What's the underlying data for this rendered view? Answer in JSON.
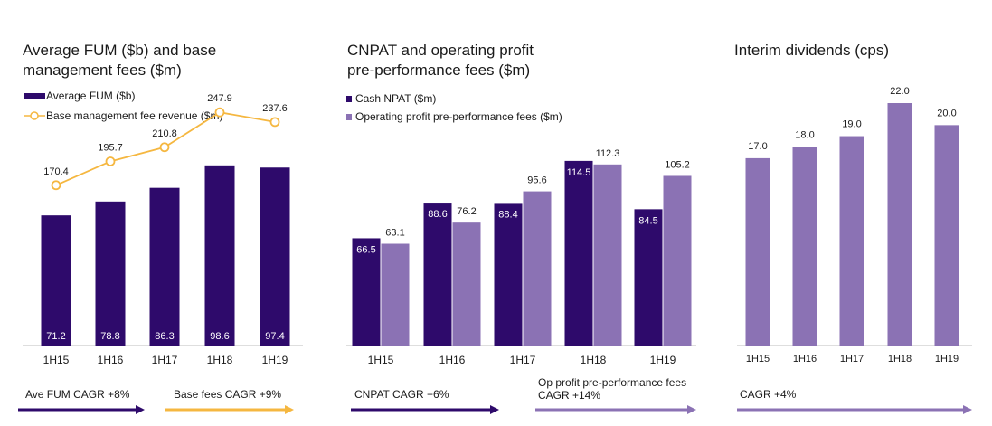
{
  "colors": {
    "dark_purple": "#2e0a6b",
    "light_purple": "#8b72b4",
    "orange": "#f5b740",
    "axis": "#bdbdbd",
    "text": "#1a1a1a"
  },
  "chart_data": [
    {
      "type": "bar",
      "title_lines": [
        "Average FUM ($b) and base",
        "management fees ($m)"
      ],
      "categories": [
        "1H15",
        "1H16",
        "1H17",
        "1H18",
        "1H19"
      ],
      "series": [
        {
          "name": "Average FUM ($b)",
          "kind": "bar",
          "values": [
            71.2,
            78.8,
            86.3,
            98.6,
            97.4
          ],
          "labels": [
            "71.2",
            "78.8",
            "86.3",
            "98.6",
            "97.4"
          ]
        },
        {
          "name": "Base management fee revenue ($m)",
          "kind": "line",
          "values": [
            170.4,
            195.7,
            210.8,
            247.9,
            237.6
          ],
          "labels": [
            "170.4",
            "195.7",
            "210.8",
            "247.9",
            "237.6"
          ]
        }
      ],
      "footer": [
        {
          "text": "Ave FUM CAGR +8%",
          "color": "dark"
        },
        {
          "text": "Base fees CAGR +9%",
          "color": "orange"
        }
      ]
    },
    {
      "type": "bar",
      "title_lines": [
        "CNPAT and operating profit",
        "pre-performance fees ($m)"
      ],
      "categories": [
        "1H15",
        "1H16",
        "1H17",
        "1H18",
        "1H19"
      ],
      "series": [
        {
          "name": "Cash NPAT ($m)",
          "kind": "bar",
          "values": [
            66.5,
            88.6,
            88.4,
            114.5,
            84.5
          ],
          "labels": [
            "66.5",
            "88.6",
            "88.4",
            "114.5",
            "84.5"
          ]
        },
        {
          "name": "Operating profit pre-performance fees ($m)",
          "kind": "bar",
          "values": [
            63.1,
            76.2,
            95.6,
            112.3,
            105.2
          ],
          "labels": [
            "63.1",
            "76.2",
            "95.6",
            "112.3",
            "105.2"
          ]
        }
      ],
      "footer": [
        {
          "text": "CNPAT CAGR +6%",
          "color": "dark"
        },
        {
          "text": "Op profit pre-performance fees\nCAGR +14%",
          "color": "light"
        }
      ]
    },
    {
      "type": "bar",
      "title_lines": [
        "Interim dividends (cps)"
      ],
      "categories": [
        "1H15",
        "1H16",
        "1H17",
        "1H18",
        "1H19"
      ],
      "series": [
        {
          "name": "",
          "kind": "bar",
          "values": [
            17.0,
            18.0,
            19.0,
            22.0,
            20.0
          ],
          "labels": [
            "17.0",
            "18.0",
            "19.0",
            "22.0",
            "20.0"
          ]
        }
      ],
      "footer": [
        {
          "text": "CAGR +4%",
          "color": "light"
        }
      ]
    }
  ]
}
